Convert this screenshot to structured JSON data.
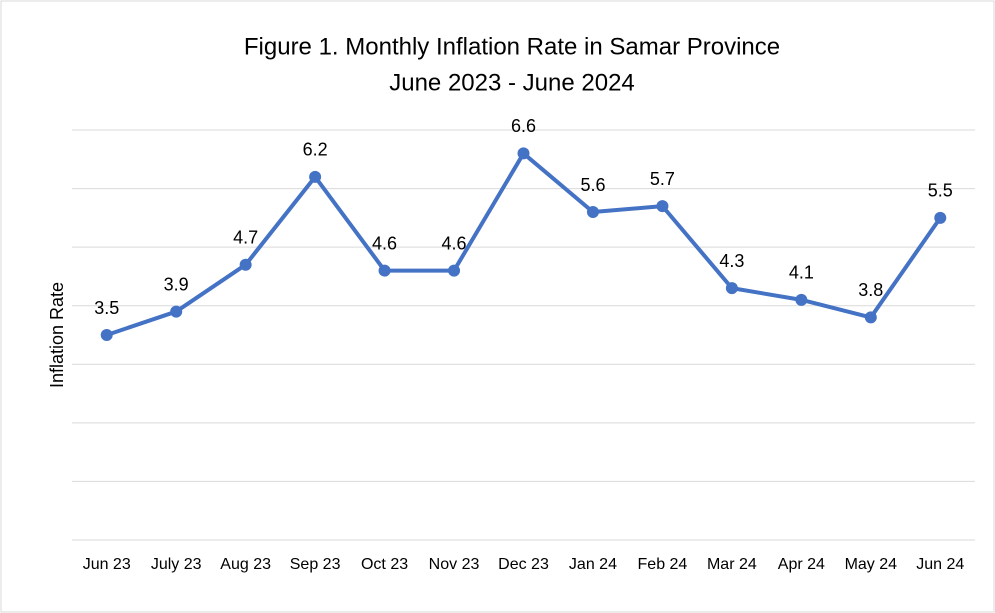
{
  "chart_data": {
    "type": "line",
    "title": "Figure 1. Monthly Inflation Rate in Samar Province",
    "subtitle": "June 2023 - June 2024",
    "y_label": "Inflation Rate",
    "categories": [
      "Jun 23",
      "July 23",
      "Aug 23",
      "Sep 23",
      "Oct 23",
      "Nov 23",
      "Dec 23",
      "Jan 24",
      "Feb 24",
      "Mar 24",
      "Apr 24",
      "May 24",
      "Jun 24"
    ],
    "values": [
      3.5,
      3.9,
      4.7,
      6.2,
      4.6,
      4.6,
      6.6,
      5.6,
      5.7,
      4.3,
      4.1,
      3.8,
      5.5
    ],
    "color": "#4472c4",
    "ylim": [
      0,
      7
    ],
    "yticks": [
      0,
      1,
      2,
      3,
      4,
      5,
      6,
      7
    ],
    "grid": true
  }
}
